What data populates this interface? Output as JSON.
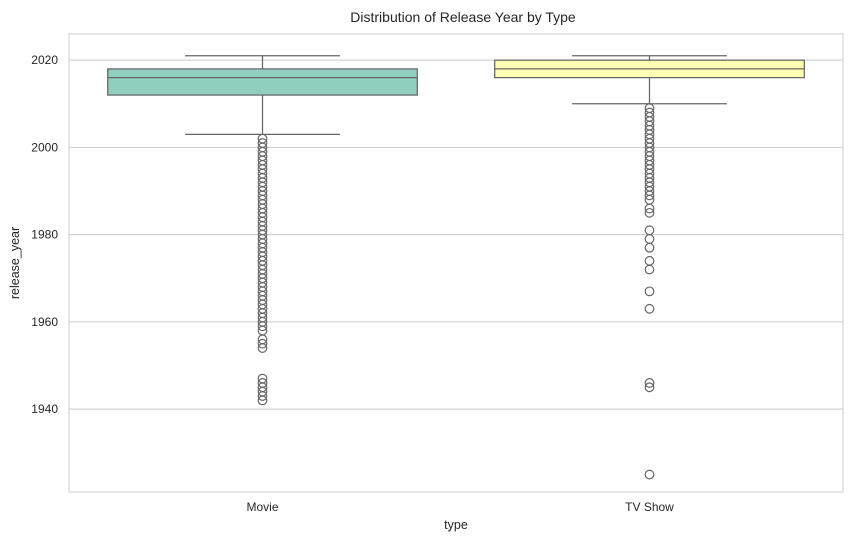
{
  "chart_data": {
    "type": "box",
    "title": "Distribution of Release Year by Type",
    "xlabel": "type",
    "ylabel": "release_year",
    "categories": [
      "Movie",
      "TV Show"
    ],
    "ylim": [
      1921,
      2026
    ],
    "yticks": [
      1940,
      1960,
      1980,
      2000,
      2020
    ],
    "grid": true,
    "colors": {
      "Movie": "#8fcfbd",
      "TV Show": "#ffffb3",
      "line": "#666666"
    },
    "boxes": [
      {
        "category": "Movie",
        "whisker_low": 2003,
        "q1": 2012,
        "median": 2016,
        "q3": 2018,
        "whisker_high": 2021,
        "outliers": [
          1942,
          1943,
          1944,
          1945,
          1946,
          1947,
          1954,
          1955,
          1956,
          1958,
          1959,
          1960,
          1961,
          1962,
          1963,
          1964,
          1965,
          1966,
          1967,
          1968,
          1969,
          1970,
          1971,
          1972,
          1973,
          1974,
          1975,
          1976,
          1977,
          1978,
          1979,
          1980,
          1981,
          1982,
          1983,
          1984,
          1985,
          1986,
          1987,
          1988,
          1989,
          1990,
          1991,
          1992,
          1993,
          1994,
          1995,
          1996,
          1997,
          1998,
          1999,
          2000,
          2001,
          2002
        ]
      },
      {
        "category": "TV Show",
        "whisker_low": 2010,
        "q1": 2016,
        "median": 2018,
        "q3": 2020,
        "whisker_high": 2021,
        "outliers": [
          1925,
          1945,
          1946,
          1963,
          1967,
          1972,
          1974,
          1977,
          1979,
          1981,
          1985,
          1986,
          1988,
          1989,
          1990,
          1991,
          1992,
          1993,
          1994,
          1995,
          1996,
          1997,
          1998,
          1999,
          2000,
          2001,
          2002,
          2003,
          2004,
          2005,
          2006,
          2007,
          2008,
          2009
        ]
      }
    ]
  }
}
